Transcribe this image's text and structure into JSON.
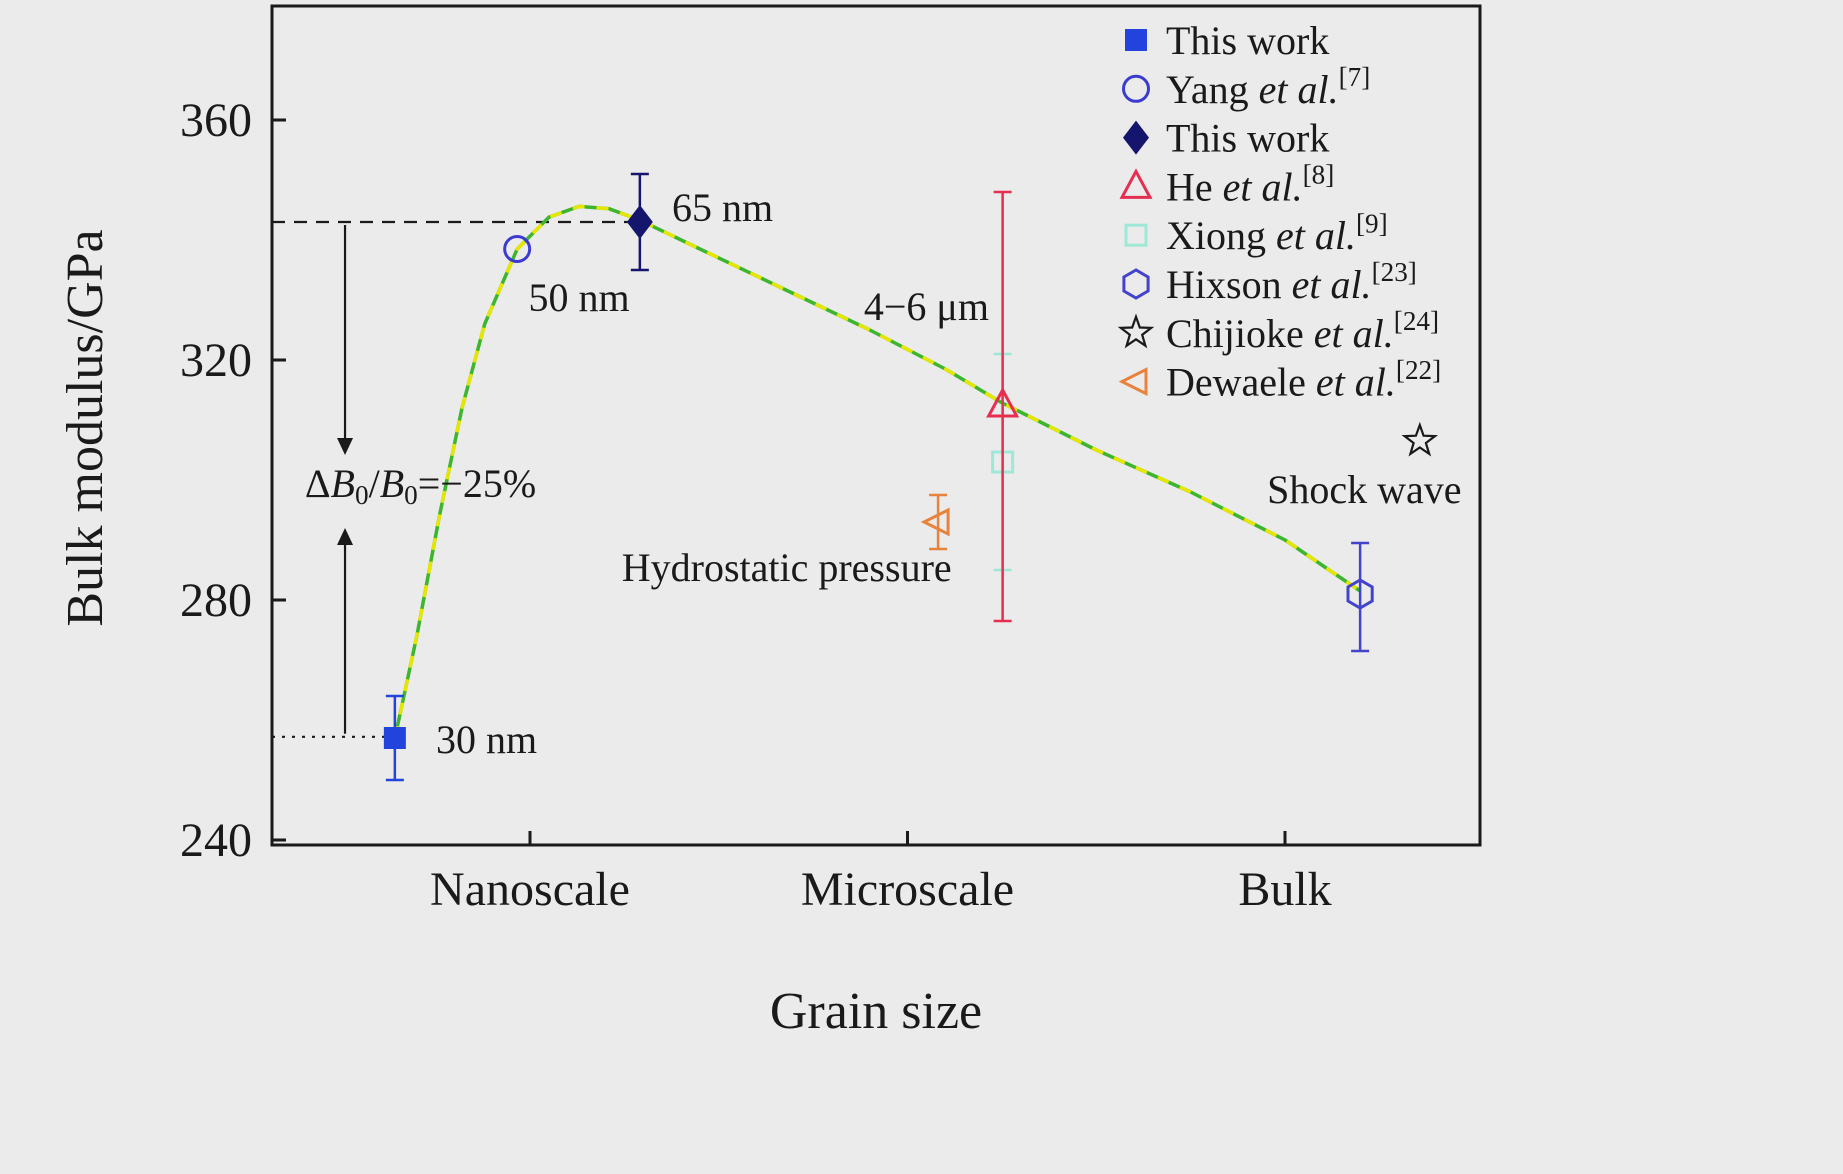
{
  "figure": {
    "background": "#ebebeb",
    "frame_color": "#1a1a1a",
    "text_color": "#1a1a1a"
  },
  "chart_data": {
    "type": "scatter",
    "title": "",
    "xlabel": "Grain size",
    "ylabel": "Bulk modulus/GPa",
    "ylim": [
      240,
      372
    ],
    "y_ticks": [
      240,
      280,
      320,
      360
    ],
    "x_categories": [
      {
        "pos": 1,
        "label": "Nanoscale"
      },
      {
        "pos": 2,
        "label": "Microscale"
      },
      {
        "pos": 3,
        "label": "Bulk"
      }
    ],
    "grid": false,
    "legend_position": "top-right-inside",
    "series": [
      {
        "id": "xiong",
        "label": "Xiong et al.[9]",
        "marker": "square-open",
        "color": "#9fe8d8",
        "points": [
          {
            "x": 2.252,
            "y": 303,
            "err_up": 18,
            "err_down": 18
          }
        ]
      },
      {
        "id": "he",
        "label": "He et al.[8]",
        "marker": "triangle-up-open",
        "color": "#e62e50",
        "points": [
          {
            "x": 2.252,
            "y": 312.5,
            "err_up": 35.5,
            "err_down": 36,
            "grain": "4−6 μm"
          }
        ]
      },
      {
        "id": "dewaele",
        "label": "Dewaele et al.[22]",
        "marker": "triangle-left-open",
        "color": "#e8823c",
        "points": [
          {
            "x": 2.081,
            "y": 293,
            "err_up": 4.5,
            "err_down": 4.5
          }
        ]
      },
      {
        "id": "hixson",
        "label": "Hixson et al.[23]",
        "marker": "hexagon-open",
        "color": "#4343cc",
        "points": [
          {
            "x": 3.199,
            "y": 281,
            "err_up": 8.5,
            "err_down": 9.5
          }
        ]
      },
      {
        "id": "chijioke",
        "label": "Chijioke et al.[24]",
        "marker": "star-open",
        "color": "#1a1a1a",
        "points": [
          {
            "x": 3.357,
            "y": 306.5
          }
        ]
      },
      {
        "id": "this-work-30nm",
        "label": "This work",
        "marker": "square-filled",
        "color": "#2244dd",
        "points": [
          {
            "x": 0.642,
            "y": 257,
            "err_up": 7,
            "err_down": 7,
            "grain": "30 nm"
          }
        ]
      },
      {
        "id": "yang",
        "label": "Yang et al.[7]",
        "marker": "circle-open",
        "color": "#3b3bd0",
        "points": [
          {
            "x": 0.966,
            "y": 338.5,
            "grain": "50 nm"
          }
        ]
      },
      {
        "id": "this-work-65nm",
        "label": "This work",
        "marker": "diamond-filled",
        "color": "#15156e",
        "points": [
          {
            "x": 1.291,
            "y": 343,
            "err_up": 8,
            "err_down": 8,
            "grain": "65 nm"
          }
        ]
      }
    ],
    "curve": {
      "colors": [
        "#3db52d",
        "#e6e600"
      ],
      "points": [
        [
          0.642,
          257
        ],
        [
          0.7,
          274
        ],
        [
          0.76,
          294
        ],
        [
          0.82,
          312
        ],
        [
          0.88,
          326
        ],
        [
          0.966,
          338.5
        ],
        [
          1.05,
          343.8
        ],
        [
          1.13,
          345.6
        ],
        [
          1.21,
          345.2
        ],
        [
          1.291,
          343.3
        ],
        [
          1.45,
          338.5
        ],
        [
          1.65,
          332.5
        ],
        [
          1.9,
          325
        ],
        [
          2.1,
          318.5
        ],
        [
          2.252,
          312.8
        ],
        [
          2.5,
          305
        ],
        [
          2.75,
          298
        ],
        [
          3.0,
          290
        ],
        [
          3.199,
          281.5
        ]
      ]
    },
    "reference_lines": [
      {
        "y": 343,
        "x_to": 1.291,
        "dash": "13 9",
        "style": "dashed"
      },
      {
        "y": 257.2,
        "x_to": 0.642,
        "dash": "3 7",
        "style": "dotted"
      }
    ],
    "delta_arrow": {
      "x": 0.51,
      "top_y": 343,
      "bottom_y": 257.2,
      "label_top_y": 307,
      "label_bottom_y": 292
    },
    "annotations": [
      {
        "name": "label-65nm",
        "x": 1.51,
        "y": 345.5,
        "parts": [
          {
            "t": "65 nm"
          }
        ]
      },
      {
        "name": "label-50nm",
        "x": 1.13,
        "y": 330.5,
        "parts": [
          {
            "t": "50 nm"
          }
        ]
      },
      {
        "name": "label-30nm",
        "x": 0.885,
        "y": 256.8,
        "parts": [
          {
            "t": "30 nm"
          }
        ]
      },
      {
        "name": "label-4-6um",
        "x": 2.05,
        "y": 329,
        "parts": [
          {
            "t": "4−6 μm"
          }
        ]
      },
      {
        "name": "label-hydrostatic-pressure",
        "x": 1.68,
        "y": 285.5,
        "parts": [
          {
            "t": "Hydrostatic pressure"
          }
        ]
      },
      {
        "name": "label-shock-wave",
        "x": 3.21,
        "y": 298.5,
        "parts": [
          {
            "t": "Shock wave"
          }
        ]
      },
      {
        "name": "label-delta-b0",
        "x": 0.71,
        "y": 299.5,
        "parts": [
          {
            "t": "Δ"
          },
          {
            "t": "B",
            "i": 1
          },
          {
            "t": "0",
            "sub": 1
          },
          {
            "t": "/"
          },
          {
            "t": "B",
            "i": 1
          },
          {
            "t": "0",
            "sub": 1
          },
          {
            "t": "=−25%"
          }
        ]
      }
    ],
    "legend": {
      "items": [
        {
          "marker": "square-filled",
          "color": "#2244dd",
          "parts": [
            {
              "t": "This work"
            }
          ]
        },
        {
          "marker": "circle-open",
          "color": "#3b3bd0",
          "parts": [
            {
              "t": "Yang "
            },
            {
              "t": "et al.",
              "i": 1
            },
            {
              "t": "[7]",
              "sup": 1
            }
          ]
        },
        {
          "marker": "diamond-filled",
          "color": "#15156e",
          "parts": [
            {
              "t": "This work"
            }
          ]
        },
        {
          "marker": "triangle-up-open",
          "color": "#e62e50",
          "parts": [
            {
              "t": "He "
            },
            {
              "t": "et al.",
              "i": 1
            },
            {
              "t": "[8]",
              "sup": 1
            }
          ]
        },
        {
          "marker": "square-open",
          "color": "#9fe8d8",
          "parts": [
            {
              "t": "Xiong "
            },
            {
              "t": "et al.",
              "i": 1
            },
            {
              "t": "[9]",
              "sup": 1
            }
          ]
        },
        {
          "marker": "hexagon-open",
          "color": "#4343cc",
          "parts": [
            {
              "t": "Hixson "
            },
            {
              "t": "et al.",
              "i": 1
            },
            {
              "t": "[23]",
              "sup": 1
            }
          ]
        },
        {
          "marker": "star-open",
          "color": "#1a1a1a",
          "parts": [
            {
              "t": "Chijioke "
            },
            {
              "t": "et al.",
              "i": 1
            },
            {
              "t": "[24]",
              "sup": 1
            }
          ]
        },
        {
          "marker": "triangle-left-open",
          "color": "#e8823c",
          "parts": [
            {
              "t": "Dewaele "
            },
            {
              "t": "et al.",
              "i": 1
            },
            {
              "t": "[22]",
              "sup": 1
            }
          ]
        }
      ]
    }
  }
}
